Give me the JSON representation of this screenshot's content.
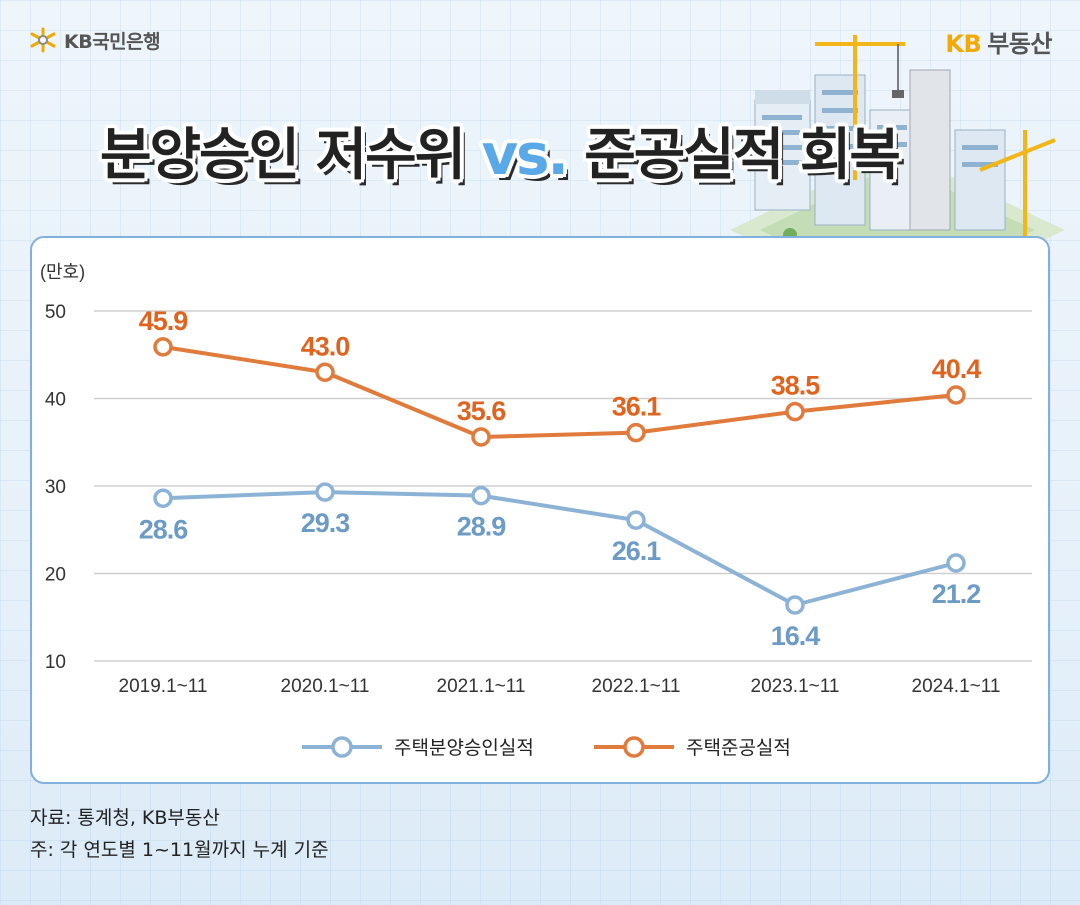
{
  "header": {
    "bank_name": "KB국민은행",
    "brand_kb": "KB",
    "brand_name": "부동산",
    "title_part1": "분양승인 저수위 ",
    "title_vs": "vs.",
    "title_part2": " 준공실적 회복"
  },
  "chart_data": {
    "type": "line",
    "unit_label": "(만호)",
    "categories": [
      "2019.1~11",
      "2020.1~11",
      "2021.1~11",
      "2022.1~11",
      "2023.1~11",
      "2024.1~11"
    ],
    "ylim": [
      10,
      50
    ],
    "yticks": [
      10,
      20,
      30,
      40,
      50
    ],
    "grid": true,
    "legend_position": "bottom-center",
    "series": [
      {
        "name": "주택분양승인실적",
        "color": "#8cb3d6",
        "label_color": "#6c9bc6",
        "label_side": "below",
        "values": [
          28.6,
          29.3,
          28.9,
          26.1,
          16.4,
          21.2
        ]
      },
      {
        "name": "주택준공실적",
        "color": "#e07b3c",
        "label_color": "#de6420",
        "label_side": "above",
        "values": [
          45.9,
          43.0,
          35.6,
          36.1,
          38.5,
          40.4
        ]
      }
    ]
  },
  "footer": {
    "source": "자료: 통계청, KB부동산",
    "note": "주: 각 연도별 1~11월까지 누계 기준"
  }
}
